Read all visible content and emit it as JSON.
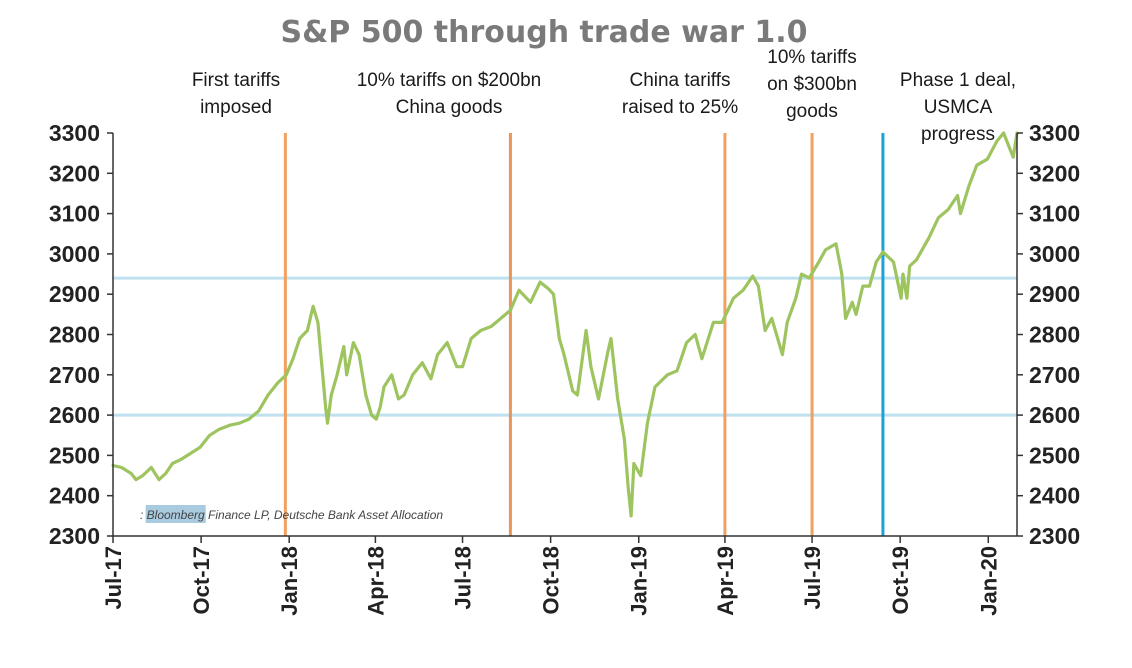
{
  "chart_data": {
    "type": "line",
    "title": "S&P 500 through trade war 1.0",
    "source": ": Bloomberg Finance LP, Deutsche Bank Asset Allocation",
    "source_highlight": "Bloomberg",
    "ylim": [
      2300,
      3300
    ],
    "yticks": [
      2300,
      2400,
      2500,
      2600,
      2700,
      2800,
      2900,
      3000,
      3100,
      3200,
      3300
    ],
    "xlim": [
      "2017-07-01",
      "2020-01-31"
    ],
    "xticks": [
      {
        "date": "2017-07-01",
        "label": "Jul-17"
      },
      {
        "date": "2017-10-01",
        "label": "Oct-17"
      },
      {
        "date": "2018-01-01",
        "label": "Jan-18"
      },
      {
        "date": "2018-04-01",
        "label": "Apr-18"
      },
      {
        "date": "2018-07-01",
        "label": "Jul-18"
      },
      {
        "date": "2018-10-01",
        "label": "Oct-18"
      },
      {
        "date": "2019-01-01",
        "label": "Jan-19"
      },
      {
        "date": "2019-04-01",
        "label": "Apr-19"
      },
      {
        "date": "2019-07-01",
        "label": "Jul-19"
      },
      {
        "date": "2019-10-01",
        "label": "Oct-19"
      },
      {
        "date": "2020-01-01",
        "label": "Jan-20"
      }
    ],
    "reference_lines": [
      2940,
      2600
    ],
    "reference_color": "#bfe0ee",
    "line_color": "#9dc45f",
    "grid": false,
    "legend": "none",
    "events": [
      {
        "date": "2017-12-28",
        "lines": [
          "First tariffs",
          "imposed"
        ],
        "color": "#f0a060"
      },
      {
        "date": "2018-08-20",
        "lines": [
          "10% tariffs on $200bn",
          "China goods"
        ],
        "color": "#e8955a"
      },
      {
        "date": "2019-04-01",
        "lines": [
          "China tariffs",
          "raised to 25%"
        ],
        "color": "#f0a060"
      },
      {
        "date": "2019-07-01",
        "lines": [
          "10% tariffs",
          "on $300bn",
          "goods"
        ],
        "color": "#f0a060"
      },
      {
        "date": "2019-09-13",
        "lines": [
          "Phase 1 deal,",
          "USMCA",
          "progress"
        ],
        "color": "#1aa3d9"
      }
    ],
    "series": [
      {
        "values": [
          [
            "2017-07-01",
            2475
          ],
          [
            "2017-07-10",
            2470
          ],
          [
            "2017-07-20",
            2455
          ],
          [
            "2017-07-25",
            2440
          ],
          [
            "2017-08-01",
            2450
          ],
          [
            "2017-08-10",
            2470
          ],
          [
            "2017-08-18",
            2440
          ],
          [
            "2017-08-25",
            2455
          ],
          [
            "2017-09-01",
            2480
          ],
          [
            "2017-09-10",
            2490
          ],
          [
            "2017-09-20",
            2505
          ],
          [
            "2017-09-30",
            2520
          ],
          [
            "2017-10-10",
            2550
          ],
          [
            "2017-10-20",
            2565
          ],
          [
            "2017-10-31",
            2575
          ],
          [
            "2017-11-10",
            2580
          ],
          [
            "2017-11-20",
            2590
          ],
          [
            "2017-11-30",
            2610
          ],
          [
            "2017-12-10",
            2650
          ],
          [
            "2017-12-20",
            2680
          ],
          [
            "2017-12-29",
            2700
          ],
          [
            "2018-01-05",
            2740
          ],
          [
            "2018-01-12",
            2790
          ],
          [
            "2018-01-20",
            2810
          ],
          [
            "2018-01-26",
            2870
          ],
          [
            "2018-01-31",
            2830
          ],
          [
            "2018-02-05",
            2700
          ],
          [
            "2018-02-08",
            2620
          ],
          [
            "2018-02-10",
            2580
          ],
          [
            "2018-02-14",
            2650
          ],
          [
            "2018-02-20",
            2700
          ],
          [
            "2018-02-27",
            2770
          ],
          [
            "2018-03-02",
            2700
          ],
          [
            "2018-03-09",
            2780
          ],
          [
            "2018-03-15",
            2750
          ],
          [
            "2018-03-22",
            2650
          ],
          [
            "2018-03-28",
            2600
          ],
          [
            "2018-04-02",
            2590
          ],
          [
            "2018-04-06",
            2620
          ],
          [
            "2018-04-10",
            2670
          ],
          [
            "2018-04-18",
            2700
          ],
          [
            "2018-04-25",
            2640
          ],
          [
            "2018-05-01",
            2650
          ],
          [
            "2018-05-10",
            2700
          ],
          [
            "2018-05-20",
            2730
          ],
          [
            "2018-05-29",
            2690
          ],
          [
            "2018-06-05",
            2750
          ],
          [
            "2018-06-15",
            2780
          ],
          [
            "2018-06-25",
            2720
          ],
          [
            "2018-07-01",
            2720
          ],
          [
            "2018-07-10",
            2790
          ],
          [
            "2018-07-20",
            2810
          ],
          [
            "2018-07-31",
            2820
          ],
          [
            "2018-08-10",
            2840
          ],
          [
            "2018-08-20",
            2860
          ],
          [
            "2018-08-29",
            2910
          ],
          [
            "2018-09-10",
            2880
          ],
          [
            "2018-09-20",
            2930
          ],
          [
            "2018-09-28",
            2915
          ],
          [
            "2018-10-04",
            2900
          ],
          [
            "2018-10-10",
            2790
          ],
          [
            "2018-10-15",
            2750
          ],
          [
            "2018-10-24",
            2660
          ],
          [
            "2018-10-29",
            2650
          ],
          [
            "2018-11-07",
            2810
          ],
          [
            "2018-11-12",
            2720
          ],
          [
            "2018-11-20",
            2640
          ],
          [
            "2018-11-30",
            2760
          ],
          [
            "2018-12-03",
            2790
          ],
          [
            "2018-12-10",
            2640
          ],
          [
            "2018-12-17",
            2540
          ],
          [
            "2018-12-21",
            2420
          ],
          [
            "2018-12-24",
            2350
          ],
          [
            "2018-12-27",
            2480
          ],
          [
            "2019-01-03",
            2450
          ],
          [
            "2019-01-10",
            2580
          ],
          [
            "2019-01-18",
            2670
          ],
          [
            "2019-01-31",
            2700
          ],
          [
            "2019-02-10",
            2710
          ],
          [
            "2019-02-20",
            2780
          ],
          [
            "2019-03-01",
            2800
          ],
          [
            "2019-03-08",
            2740
          ],
          [
            "2019-03-20",
            2830
          ],
          [
            "2019-03-29",
            2830
          ],
          [
            "2019-04-10",
            2890
          ],
          [
            "2019-04-20",
            2910
          ],
          [
            "2019-04-30",
            2945
          ],
          [
            "2019-05-06",
            2920
          ],
          [
            "2019-05-13",
            2810
          ],
          [
            "2019-05-20",
            2840
          ],
          [
            "2019-05-31",
            2750
          ],
          [
            "2019-06-05",
            2830
          ],
          [
            "2019-06-14",
            2890
          ],
          [
            "2019-06-20",
            2950
          ],
          [
            "2019-06-28",
            2940
          ],
          [
            "2019-07-08",
            2980
          ],
          [
            "2019-07-15",
            3010
          ],
          [
            "2019-07-26",
            3025
          ],
          [
            "2019-08-01",
            2950
          ],
          [
            "2019-08-05",
            2840
          ],
          [
            "2019-08-12",
            2880
          ],
          [
            "2019-08-16",
            2850
          ],
          [
            "2019-08-23",
            2920
          ],
          [
            "2019-08-30",
            2920
          ],
          [
            "2019-09-06",
            2980
          ],
          [
            "2019-09-13",
            3005
          ],
          [
            "2019-09-24",
            2980
          ],
          [
            "2019-10-02",
            2890
          ],
          [
            "2019-10-04",
            2950
          ],
          [
            "2019-10-08",
            2890
          ],
          [
            "2019-10-11",
            2970
          ],
          [
            "2019-10-18",
            2985
          ],
          [
            "2019-10-31",
            3040
          ],
          [
            "2019-11-10",
            3090
          ],
          [
            "2019-11-20",
            3110
          ],
          [
            "2019-11-30",
            3145
          ],
          [
            "2019-12-03",
            3100
          ],
          [
            "2019-12-12",
            3170
          ],
          [
            "2019-12-20",
            3220
          ],
          [
            "2019-12-31",
            3235
          ],
          [
            "2020-01-10",
            3280
          ],
          [
            "2020-01-17",
            3300
          ],
          [
            "2020-01-22",
            3270
          ],
          [
            "2020-01-27",
            3240
          ],
          [
            "2020-01-31",
            3300
          ]
        ]
      }
    ]
  }
}
